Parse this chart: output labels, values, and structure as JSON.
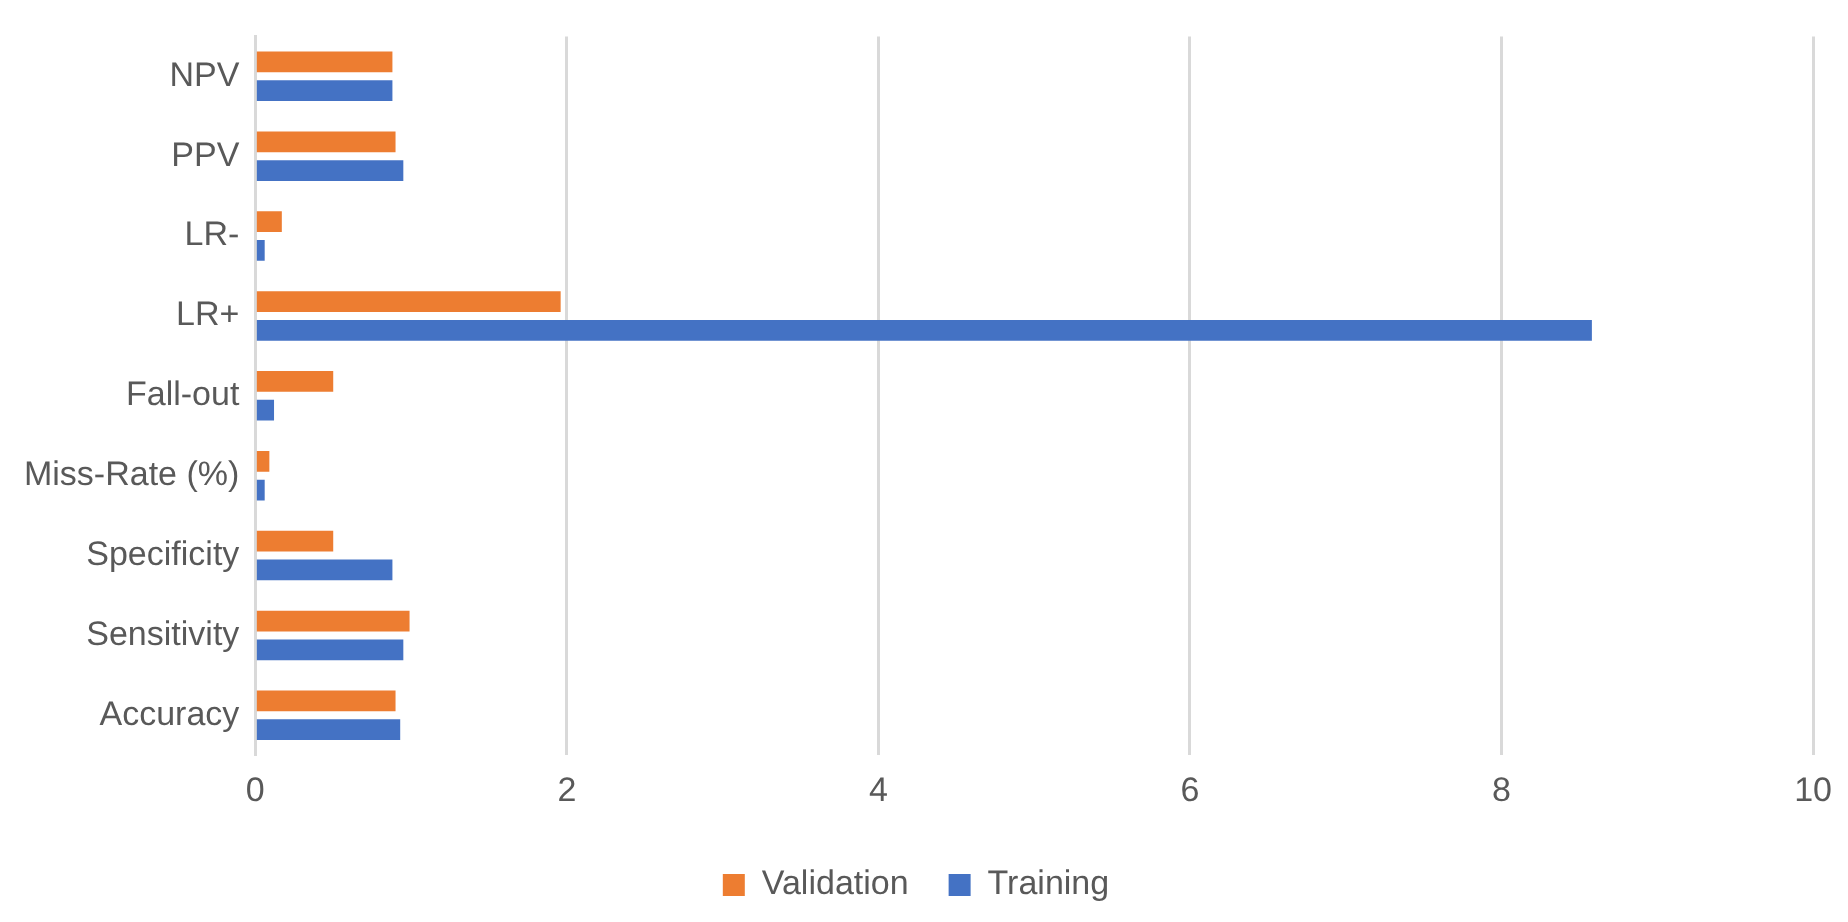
{
  "chart_data": {
    "type": "bar",
    "orientation": "horizontal",
    "categories": [
      "NPV",
      "PPV",
      "LR-",
      "LR+",
      "Fall-out",
      "Miss-Rate (%)",
      "Specificity",
      "Sensitivity",
      "Accuracy"
    ],
    "series": [
      {
        "name": "Validation",
        "color": "#ed7d31",
        "values": [
          0.88,
          0.9,
          0.17,
          1.96,
          0.5,
          0.09,
          0.5,
          0.99,
          0.9
        ]
      },
      {
        "name": "Training",
        "color": "#4472c4",
        "values": [
          0.88,
          0.95,
          0.06,
          8.58,
          0.12,
          0.06,
          0.88,
          0.95,
          0.93
        ]
      }
    ],
    "xlim": [
      0,
      10
    ],
    "xticks": [
      0,
      2,
      4,
      6,
      8,
      10
    ],
    "grid": "x",
    "legend": "bottom"
  }
}
